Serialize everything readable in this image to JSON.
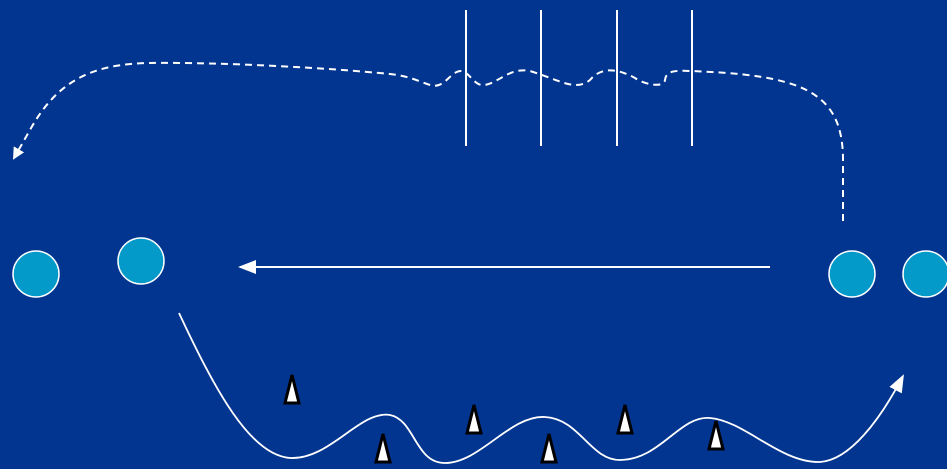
{
  "diagram": {
    "type": "drill-diagram",
    "colors": {
      "background": "#023590",
      "line": "#ffffff",
      "player_fill": "#0399c9",
      "player_stroke": "#ffffff",
      "cone_fill": "#ffffff",
      "cone_stroke": "#000000"
    },
    "players": [
      {
        "id": "player-left-outer",
        "group": "left"
      },
      {
        "id": "player-left-inner",
        "group": "left"
      },
      {
        "id": "player-right-inner",
        "group": "right"
      },
      {
        "id": "player-right-outer",
        "group": "right"
      }
    ],
    "hurdles": [
      {
        "id": "hurdle-1"
      },
      {
        "id": "hurdle-2"
      },
      {
        "id": "hurdle-3"
      },
      {
        "id": "hurdle-4"
      }
    ],
    "cones": [
      {
        "id": "cone-1"
      },
      {
        "id": "cone-2"
      },
      {
        "id": "cone-3"
      },
      {
        "id": "cone-4"
      },
      {
        "id": "cone-5"
      },
      {
        "id": "cone-6"
      },
      {
        "id": "cone-7"
      }
    ],
    "paths": [
      {
        "id": "pass-arrow",
        "style": "solid",
        "direction": "right-to-left"
      },
      {
        "id": "dribble-weave-path",
        "style": "solid",
        "direction": "left-to-right"
      },
      {
        "id": "hurdle-run-path",
        "style": "dashed",
        "direction": "right-to-left"
      }
    ]
  }
}
